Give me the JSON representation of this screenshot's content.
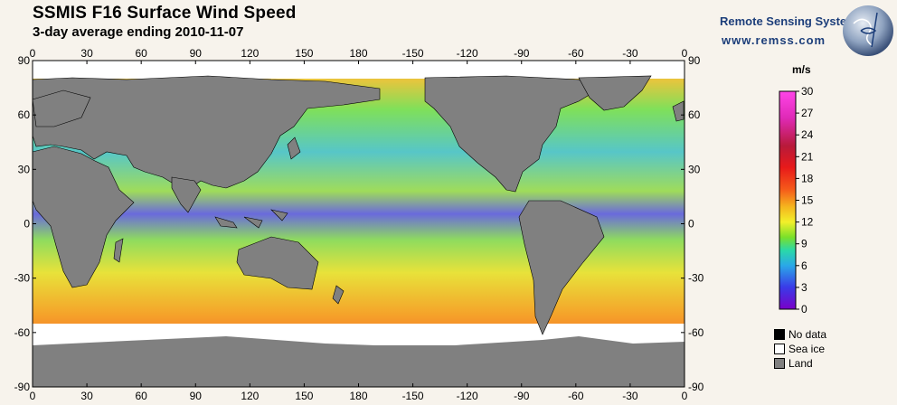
{
  "header": {
    "title": "SSMIS F16 Surface Wind Speed",
    "subtitle": "3-day average ending 2010-11-07",
    "brand": "Remote Sensing Systems",
    "url": "www.remss.com"
  },
  "map": {
    "x_ticks": [
      "0",
      "30",
      "60",
      "90",
      "120",
      "150",
      "180",
      "-150",
      "-120",
      "-90",
      "-60",
      "-30",
      "0"
    ],
    "y_ticks": [
      "90",
      "60",
      "30",
      "0",
      "-30",
      "-60",
      "-90"
    ]
  },
  "colorbar": {
    "unit": "m/s",
    "ticks": [
      "30",
      "27",
      "24",
      "21",
      "18",
      "15",
      "12",
      "9",
      "6",
      "3",
      "0"
    ],
    "range": [
      0,
      30
    ]
  },
  "legend": [
    {
      "label": "No data",
      "color": "#000000"
    },
    {
      "label": "Sea ice",
      "color": "#ffffff"
    },
    {
      "label": "Land",
      "color": "#808080"
    }
  ]
}
